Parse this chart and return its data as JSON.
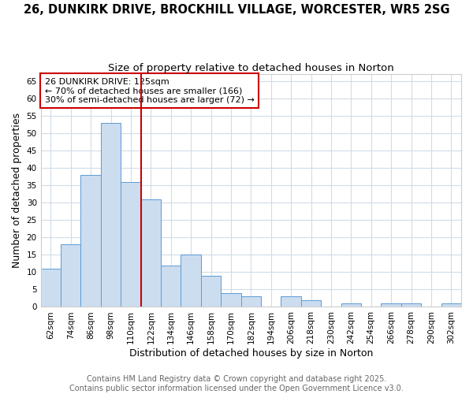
{
  "title1": "26, DUNKIRK DRIVE, BROCKHILL VILLAGE, WORCESTER, WR5 2SG",
  "title2": "Size of property relative to detached houses in Norton",
  "xlabel": "Distribution of detached houses by size in Norton",
  "ylabel": "Number of detached properties",
  "categories": [
    "62sqm",
    "74sqm",
    "86sqm",
    "98sqm",
    "110sqm",
    "122sqm",
    "134sqm",
    "146sqm",
    "158sqm",
    "170sqm",
    "182sqm",
    "194sqm",
    "206sqm",
    "218sqm",
    "230sqm",
    "242sqm",
    "254sqm",
    "266sqm",
    "278sqm",
    "290sqm",
    "302sqm"
  ],
  "values": [
    11,
    18,
    38,
    53,
    36,
    31,
    12,
    15,
    9,
    4,
    3,
    0,
    3,
    2,
    0,
    1,
    0,
    1,
    1,
    0,
    1
  ],
  "bar_color": "#ccddf0",
  "bar_edge_color": "#5b9bd5",
  "annotation_text": "26 DUNKIRK DRIVE: 125sqm\n← 70% of detached houses are smaller (166)\n30% of semi-detached houses are larger (72) →",
  "annotation_box_color": "#ffffff",
  "annotation_box_edge_color": "#cc0000",
  "ylim": [
    0,
    67
  ],
  "yticks": [
    0,
    5,
    10,
    15,
    20,
    25,
    30,
    35,
    40,
    45,
    50,
    55,
    60,
    65
  ],
  "vline_color": "#cc0000",
  "vline_x_index": 5,
  "footer1": "Contains HM Land Registry data © Crown copyright and database right 2025.",
  "footer2": "Contains public sector information licensed under the Open Government Licence v3.0.",
  "background_color": "#ffffff",
  "grid_color": "#d0dce8",
  "title1_fontsize": 10.5,
  "title2_fontsize": 9.5,
  "axis_label_fontsize": 9,
  "tick_fontsize": 7.5,
  "annotation_fontsize": 8,
  "footer_fontsize": 7
}
